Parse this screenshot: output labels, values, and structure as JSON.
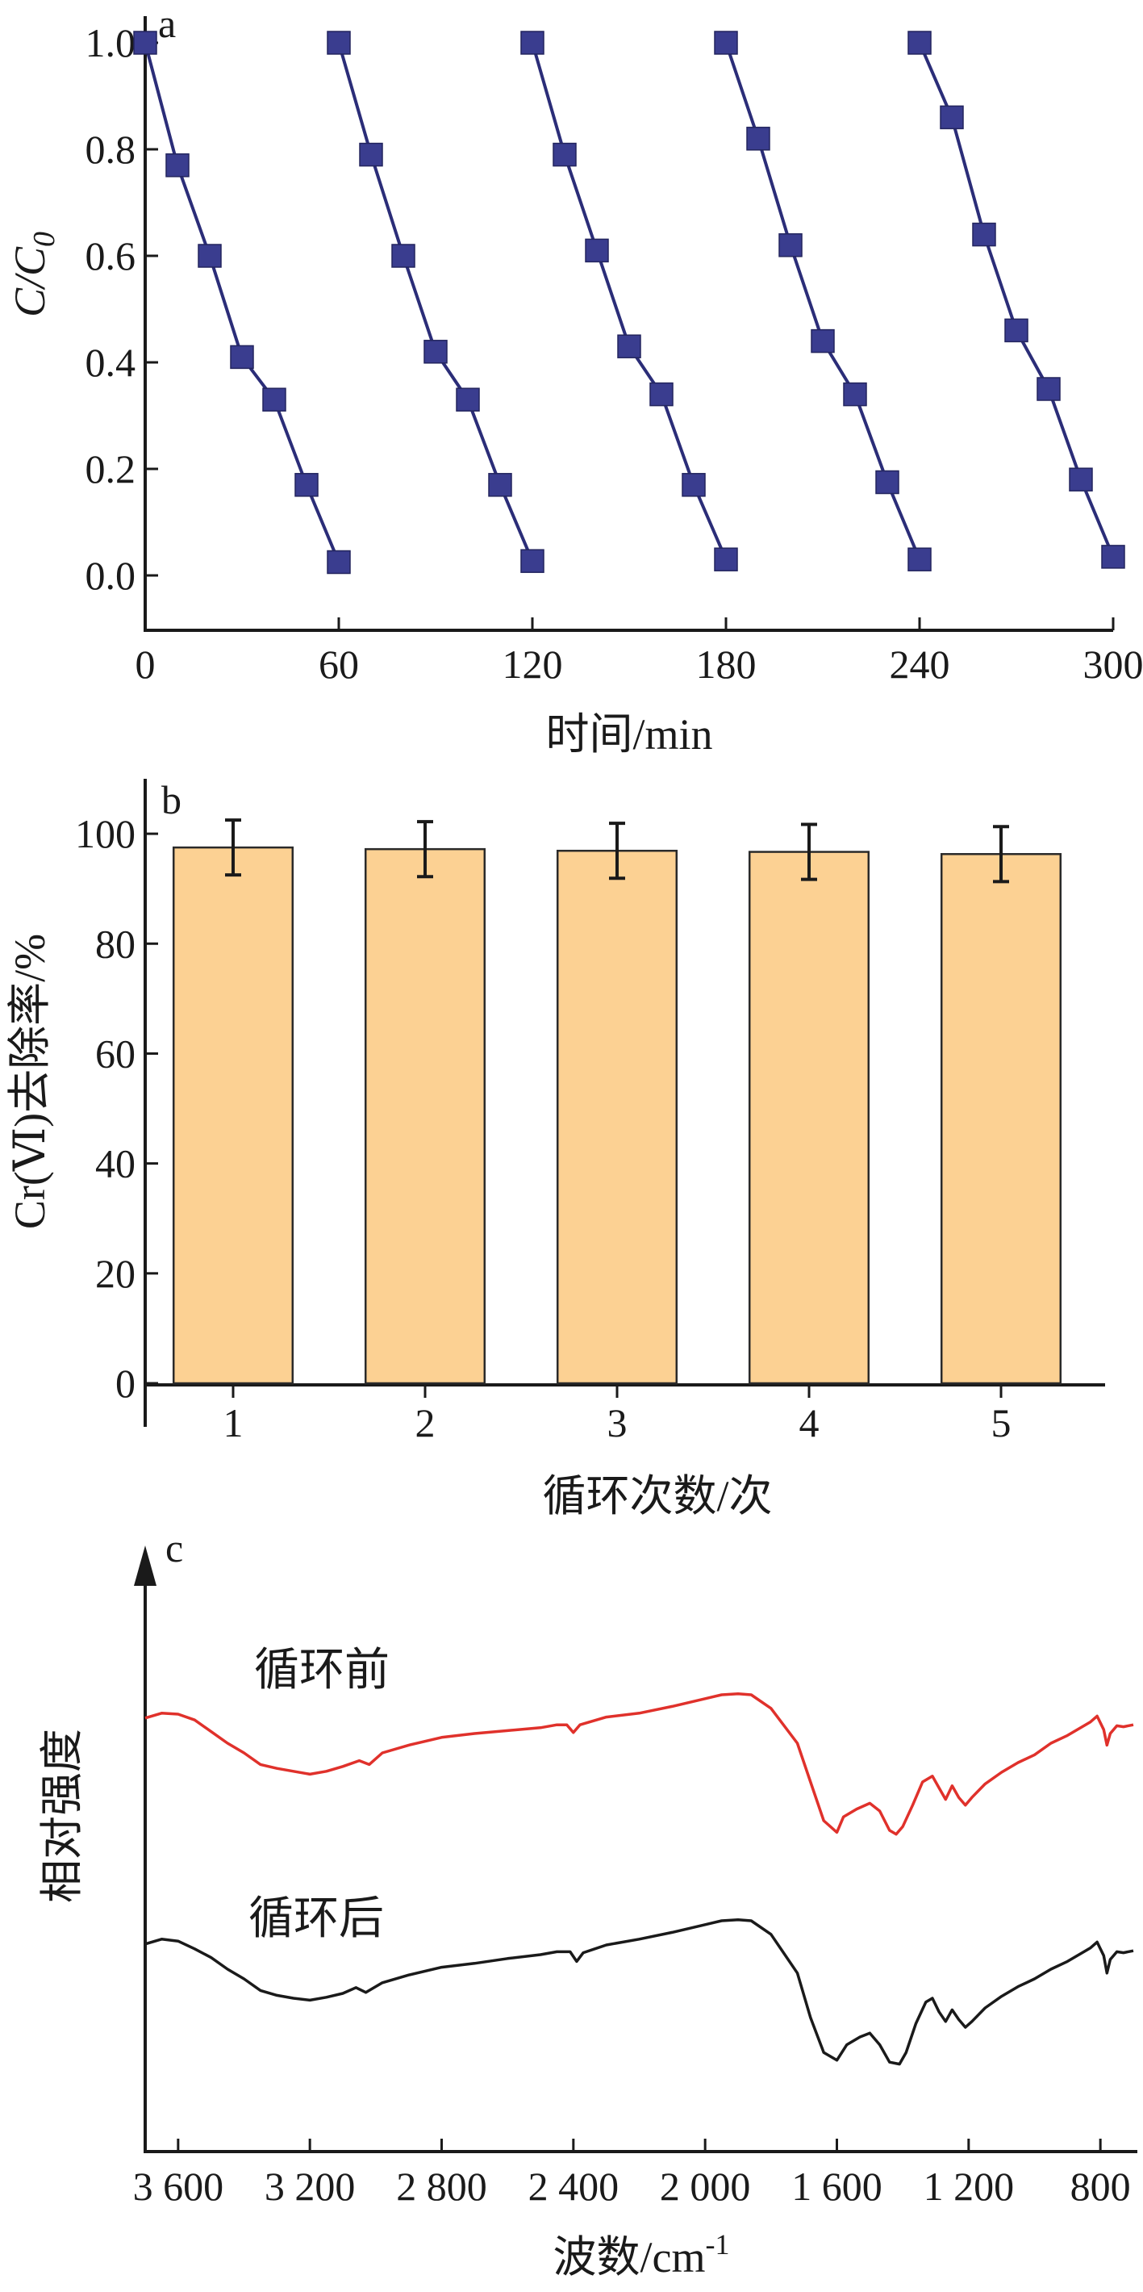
{
  "chart_data": [
    {
      "type": "line",
      "panel": "a",
      "xlabel": "时间/min",
      "ylabel_main": "C/C",
      "ylabel_sub": "0",
      "xlim": [
        0,
        300
      ],
      "ylim": [
        -0.1,
        1.05
      ],
      "xticks": [
        0,
        60,
        120,
        180,
        240,
        300
      ],
      "yticks": [
        0.0,
        0.2,
        0.4,
        0.6,
        0.8,
        1.0
      ],
      "yticklabels": [
        "0.0",
        "0.2",
        "0.4",
        "0.6",
        "0.8",
        "1.0"
      ],
      "series_color": "#2b2d78",
      "marker_color": "#3a3d8f",
      "series": [
        {
          "x": [
            0,
            10,
            20,
            30,
            40,
            50,
            60
          ],
          "y": [
            1.0,
            0.77,
            0.6,
            0.41,
            0.33,
            0.17,
            0.025
          ]
        },
        {
          "x": [
            60,
            70,
            80,
            90,
            100,
            110,
            120
          ],
          "y": [
            1.0,
            0.79,
            0.6,
            0.42,
            0.33,
            0.17,
            0.027
          ]
        },
        {
          "x": [
            120,
            130,
            140,
            150,
            160,
            170,
            180
          ],
          "y": [
            1.0,
            0.79,
            0.61,
            0.43,
            0.34,
            0.17,
            0.03
          ]
        },
        {
          "x": [
            180,
            190,
            200,
            210,
            220,
            230,
            240
          ],
          "y": [
            1.0,
            0.82,
            0.62,
            0.44,
            0.34,
            0.175,
            0.03
          ]
        },
        {
          "x": [
            240,
            250,
            260,
            270,
            280,
            290,
            300
          ],
          "y": [
            1.0,
            0.86,
            0.64,
            0.46,
            0.35,
            0.18,
            0.035
          ]
        }
      ]
    },
    {
      "type": "bar",
      "panel": "b",
      "xlabel": "循环次数/次",
      "ylabel": "Cr(Ⅵ)去除率/%",
      "categories": [
        "1",
        "2",
        "3",
        "4",
        "5"
      ],
      "values": [
        97.5,
        97.2,
        96.9,
        96.7,
        96.3
      ],
      "errors": [
        5.0,
        5.0,
        5.0,
        5.0,
        5.0
      ],
      "ylim": [
        0,
        110
      ],
      "yticks": [
        0,
        20,
        40,
        60,
        80,
        100
      ],
      "bar_color": "#fcd193",
      "bar_edge": "#2a2a2a"
    },
    {
      "type": "line",
      "panel": "c",
      "xlabel_main": "波数/cm",
      "xlabel_sup": "-1",
      "ylabel": "相对强度",
      "xlim": [
        3700,
        700
      ],
      "xticks": [
        3600,
        3200,
        2800,
        2400,
        2000,
        1600,
        1200,
        800
      ],
      "xticklabels": [
        "3 600",
        "3 200",
        "2 800",
        "2 400",
        "2 000",
        "1 600",
        "1 200",
        "800"
      ],
      "series": [
        {
          "name": "循环前",
          "color": "#e0312b",
          "points": [
            [
              3700,
              1.3
            ],
            [
              3650,
              1.55
            ],
            [
              3600,
              1.5
            ],
            [
              3550,
              1.2
            ],
            [
              3500,
              0.6
            ],
            [
              3450,
              0.0
            ],
            [
              3400,
              -0.5
            ],
            [
              3350,
              -1.1
            ],
            [
              3300,
              -1.3
            ],
            [
              3250,
              -1.45
            ],
            [
              3200,
              -1.6
            ],
            [
              3150,
              -1.45
            ],
            [
              3100,
              -1.2
            ],
            [
              3050,
              -0.9
            ],
            [
              3020,
              -1.1
            ],
            [
              2980,
              -0.5
            ],
            [
              2900,
              -0.1
            ],
            [
              2800,
              0.3
            ],
            [
              2700,
              0.5
            ],
            [
              2600,
              0.65
            ],
            [
              2500,
              0.8
            ],
            [
              2450,
              0.95
            ],
            [
              2420,
              0.95
            ],
            [
              2400,
              0.55
            ],
            [
              2380,
              0.95
            ],
            [
              2300,
              1.35
            ],
            [
              2200,
              1.55
            ],
            [
              2100,
              1.9
            ],
            [
              2000,
              2.3
            ],
            [
              1950,
              2.5
            ],
            [
              1900,
              2.55
            ],
            [
              1860,
              2.5
            ],
            [
              1800,
              1.8
            ],
            [
              1720,
              0.0
            ],
            [
              1680,
              -2.0
            ],
            [
              1640,
              -4.0
            ],
            [
              1600,
              -4.6
            ],
            [
              1580,
              -3.8
            ],
            [
              1540,
              -3.4
            ],
            [
              1500,
              -3.1
            ],
            [
              1470,
              -3.5
            ],
            [
              1440,
              -4.5
            ],
            [
              1420,
              -4.7
            ],
            [
              1400,
              -4.3
            ],
            [
              1370,
              -3.2
            ],
            [
              1340,
              -2.0
            ],
            [
              1310,
              -1.7
            ],
            [
              1290,
              -2.3
            ],
            [
              1270,
              -2.9
            ],
            [
              1250,
              -2.2
            ],
            [
              1230,
              -2.8
            ],
            [
              1210,
              -3.2
            ],
            [
              1190,
              -2.8
            ],
            [
              1150,
              -2.1
            ],
            [
              1100,
              -1.5
            ],
            [
              1050,
              -1.0
            ],
            [
              1000,
              -0.6
            ],
            [
              950,
              0.0
            ],
            [
              900,
              0.4
            ],
            [
              850,
              0.9
            ],
            [
              830,
              1.1
            ],
            [
              810,
              1.4
            ],
            [
              790,
              0.7
            ],
            [
              780,
              -0.1
            ],
            [
              770,
              0.5
            ],
            [
              750,
              0.9
            ],
            [
              730,
              0.85
            ],
            [
              700,
              0.95
            ]
          ]
        },
        {
          "name": "循环后",
          "color": "#1a1a1a",
          "points": [
            [
              3700,
              1.3
            ],
            [
              3650,
              1.55
            ],
            [
              3600,
              1.45
            ],
            [
              3550,
              1.05
            ],
            [
              3500,
              0.6
            ],
            [
              3450,
              0.0
            ],
            [
              3400,
              -0.5
            ],
            [
              3350,
              -1.1
            ],
            [
              3300,
              -1.35
            ],
            [
              3250,
              -1.5
            ],
            [
              3200,
              -1.6
            ],
            [
              3150,
              -1.45
            ],
            [
              3100,
              -1.25
            ],
            [
              3060,
              -0.95
            ],
            [
              3030,
              -1.2
            ],
            [
              2980,
              -0.7
            ],
            [
              2900,
              -0.3
            ],
            [
              2800,
              0.1
            ],
            [
              2700,
              0.3
            ],
            [
              2600,
              0.55
            ],
            [
              2500,
              0.75
            ],
            [
              2450,
              0.9
            ],
            [
              2410,
              0.9
            ],
            [
              2390,
              0.4
            ],
            [
              2370,
              0.85
            ],
            [
              2300,
              1.25
            ],
            [
              2200,
              1.55
            ],
            [
              2100,
              1.9
            ],
            [
              2000,
              2.3
            ],
            [
              1950,
              2.5
            ],
            [
              1900,
              2.55
            ],
            [
              1860,
              2.5
            ],
            [
              1800,
              1.8
            ],
            [
              1720,
              -0.2
            ],
            [
              1680,
              -2.5
            ],
            [
              1640,
              -4.3
            ],
            [
              1600,
              -4.7
            ],
            [
              1570,
              -3.9
            ],
            [
              1530,
              -3.5
            ],
            [
              1500,
              -3.3
            ],
            [
              1470,
              -3.9
            ],
            [
              1440,
              -4.8
            ],
            [
              1410,
              -4.9
            ],
            [
              1390,
              -4.3
            ],
            [
              1360,
              -2.8
            ],
            [
              1330,
              -1.7
            ],
            [
              1310,
              -1.5
            ],
            [
              1290,
              -2.2
            ],
            [
              1270,
              -2.7
            ],
            [
              1250,
              -2.1
            ],
            [
              1230,
              -2.6
            ],
            [
              1210,
              -3.0
            ],
            [
              1190,
              -2.7
            ],
            [
              1150,
              -2.0
            ],
            [
              1100,
              -1.4
            ],
            [
              1050,
              -0.9
            ],
            [
              1000,
              -0.5
            ],
            [
              950,
              0.0
            ],
            [
              900,
              0.4
            ],
            [
              850,
              0.9
            ],
            [
              830,
              1.1
            ],
            [
              810,
              1.4
            ],
            [
              790,
              0.7
            ],
            [
              780,
              -0.2
            ],
            [
              770,
              0.5
            ],
            [
              750,
              0.9
            ],
            [
              730,
              0.85
            ],
            [
              700,
              0.95
            ]
          ]
        }
      ]
    }
  ]
}
